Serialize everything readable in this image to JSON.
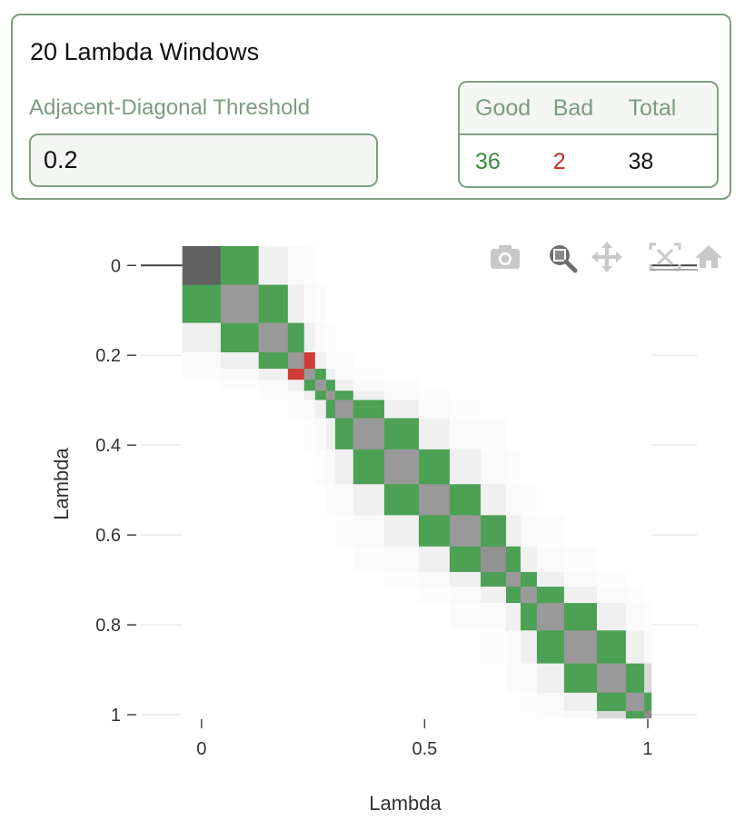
{
  "panel": {
    "title": "20 Lambda Windows",
    "threshold_label": "Adjacent-Diagonal Threshold",
    "threshold_value": "0.2",
    "stats": {
      "headers": [
        "Good",
        "Bad",
        "Total"
      ],
      "good": "36",
      "bad": "2",
      "total": "38"
    }
  },
  "modebar": [
    {
      "icon": "camera-icon",
      "active": false
    },
    {
      "icon": "zoom-icon",
      "active": true
    },
    {
      "icon": "pan-icon",
      "active": false
    },
    {
      "icon": "autoscale-icon",
      "active": false
    },
    {
      "icon": "home-icon",
      "active": false
    }
  ],
  "colors": {
    "good": "#4ca154",
    "bad": "#d13b35",
    "accent": "#7f9f82"
  },
  "chart_data": {
    "type": "heatmap",
    "xlabel": "Lambda",
    "ylabel": "Lambda",
    "xticks": [
      "0",
      "0.5",
      "1"
    ],
    "xtick_values": [
      0,
      0.5,
      1
    ],
    "yticks": [
      "0",
      "0.2",
      "0.4",
      "0.6",
      "0.8",
      "1"
    ],
    "ytick_values": [
      0,
      0.2,
      0.4,
      0.6,
      0.8,
      1
    ],
    "xlim": [
      -0.136,
      1.11
    ],
    "ylim": [
      1.006,
      -0.045
    ],
    "y_reversed": true,
    "threshold": 0.2,
    "lambdas": [
      0,
      0.086,
      0.17,
      0.217,
      0.243,
      0.266,
      0.292,
      0.307,
      0.373,
      0.446,
      0.528,
      0.584,
      0.667,
      0.698,
      0.732,
      0.771,
      0.854,
      0.918,
      0.984,
      1.0
    ],
    "z": [
      [
        0.62,
        0.3,
        0.06,
        0.02,
        0.01,
        0,
        0,
        0,
        0,
        0,
        0,
        0,
        0,
        0,
        0,
        0,
        0,
        0,
        0,
        0
      ],
      [
        0.3,
        0.4,
        0.3,
        0.06,
        0.02,
        0.01,
        0,
        0,
        0,
        0,
        0,
        0,
        0,
        0,
        0,
        0,
        0,
        0,
        0,
        0
      ],
      [
        0.06,
        0.3,
        0.4,
        0.3,
        0.06,
        0.02,
        0.01,
        0,
        0,
        0,
        0,
        0,
        0,
        0,
        0,
        0,
        0,
        0,
        0,
        0
      ],
      [
        0.02,
        0.06,
        0.3,
        0.4,
        0.15,
        0.06,
        0.02,
        0.01,
        0,
        0,
        0,
        0,
        0,
        0,
        0,
        0,
        0,
        0,
        0,
        0
      ],
      [
        0.01,
        0.02,
        0.06,
        0.15,
        0.4,
        0.3,
        0.06,
        0.02,
        0.01,
        0,
        0,
        0,
        0,
        0,
        0,
        0,
        0,
        0,
        0,
        0
      ],
      [
        0,
        0.01,
        0.02,
        0.06,
        0.3,
        0.4,
        0.3,
        0.06,
        0.02,
        0.01,
        0,
        0,
        0,
        0,
        0,
        0,
        0,
        0,
        0,
        0
      ],
      [
        0,
        0,
        0.01,
        0.02,
        0.06,
        0.3,
        0.4,
        0.3,
        0.06,
        0.02,
        0.01,
        0,
        0,
        0,
        0,
        0,
        0,
        0,
        0,
        0
      ],
      [
        0,
        0,
        0,
        0.01,
        0.02,
        0.06,
        0.3,
        0.4,
        0.3,
        0.06,
        0.02,
        0.01,
        0,
        0,
        0,
        0,
        0,
        0,
        0,
        0
      ],
      [
        0,
        0,
        0,
        0,
        0.01,
        0.02,
        0.06,
        0.3,
        0.4,
        0.3,
        0.06,
        0.02,
        0.01,
        0,
        0,
        0,
        0,
        0,
        0,
        0
      ],
      [
        0,
        0,
        0,
        0,
        0,
        0.01,
        0.02,
        0.06,
        0.3,
        0.4,
        0.3,
        0.06,
        0.02,
        0.01,
        0,
        0,
        0,
        0,
        0,
        0
      ],
      [
        0,
        0,
        0,
        0,
        0,
        0,
        0.01,
        0.02,
        0.06,
        0.3,
        0.4,
        0.3,
        0.06,
        0.02,
        0.01,
        0,
        0,
        0,
        0,
        0
      ],
      [
        0,
        0,
        0,
        0,
        0,
        0,
        0,
        0.01,
        0.02,
        0.06,
        0.3,
        0.4,
        0.3,
        0.06,
        0.02,
        0.01,
        0,
        0,
        0,
        0
      ],
      [
        0,
        0,
        0,
        0,
        0,
        0,
        0,
        0,
        0.01,
        0.02,
        0.06,
        0.3,
        0.43,
        0.3,
        0.06,
        0.02,
        0.01,
        0,
        0,
        0
      ],
      [
        0,
        0,
        0,
        0,
        0,
        0,
        0,
        0,
        0,
        0.01,
        0.02,
        0.06,
        0.3,
        0.4,
        0.3,
        0.06,
        0.02,
        0.01,
        0,
        0
      ],
      [
        0,
        0,
        0,
        0,
        0,
        0,
        0,
        0,
        0,
        0,
        0.01,
        0.02,
        0.06,
        0.3,
        0.4,
        0.3,
        0.06,
        0.02,
        0.01,
        0
      ],
      [
        0,
        0,
        0,
        0,
        0,
        0,
        0,
        0,
        0,
        0,
        0,
        0.01,
        0.02,
        0.06,
        0.3,
        0.4,
        0.3,
        0.06,
        0.02,
        0.01
      ],
      [
        0,
        0,
        0,
        0,
        0,
        0,
        0,
        0,
        0,
        0,
        0,
        0,
        0.01,
        0.02,
        0.06,
        0.3,
        0.4,
        0.3,
        0.06,
        0.02
      ],
      [
        0,
        0,
        0,
        0,
        0,
        0,
        0,
        0,
        0,
        0,
        0,
        0,
        0,
        0.01,
        0.02,
        0.06,
        0.3,
        0.4,
        0.3,
        0.15
      ],
      [
        0,
        0,
        0,
        0,
        0,
        0,
        0,
        0,
        0,
        0,
        0,
        0,
        0,
        0,
        0.01,
        0.02,
        0.06,
        0.3,
        0.4,
        0.3
      ],
      [
        0,
        0,
        0,
        0,
        0,
        0,
        0,
        0,
        0,
        0,
        0,
        0,
        0,
        0,
        0,
        0.01,
        0.02,
        0.15,
        0.3,
        0.45
      ]
    ]
  }
}
